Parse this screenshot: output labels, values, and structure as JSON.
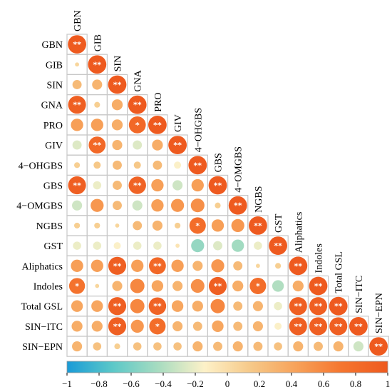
{
  "chart_data": {
    "type": "heatmap",
    "subtype": "correlation-matrix-lower-triangle",
    "title": "",
    "variables": [
      "GBN",
      "GIB",
      "SIN",
      "GNA",
      "PRO",
      "GIV",
      "4−OHGBS",
      "GBS",
      "4−OMGBS",
      "NGBS",
      "GST",
      "Aliphatics",
      "Indoles",
      "Total GSL",
      "SIN−ITC",
      "SIN−EPN"
    ],
    "matrix": [
      [
        1
      ],
      [
        0.05,
        1
      ],
      [
        0.25,
        0.3,
        1
      ],
      [
        0.95,
        0.1,
        0.35,
        1
      ],
      [
        0.45,
        0.45,
        0.35,
        0.85,
        1
      ],
      [
        -0.25,
        0.85,
        0.3,
        -0.25,
        0.35,
        1
      ],
      [
        0.1,
        0.15,
        0.25,
        0.15,
        0.25,
        -0.15,
        1
      ],
      [
        0.95,
        -0.2,
        0.25,
        0.9,
        0.45,
        -0.3,
        0.45,
        1
      ],
      [
        -0.3,
        0.5,
        0.25,
        -0.3,
        0.45,
        0.5,
        0.55,
        0.1,
        1
      ],
      [
        0.1,
        0.1,
        0.05,
        0.25,
        0.3,
        0.1,
        0.8,
        0.45,
        0.5,
        1
      ],
      [
        -0.2,
        -0.2,
        -0.15,
        -0.2,
        -0.2,
        -0.05,
        -0.5,
        -0.25,
        -0.45,
        -0.2,
        1
      ],
      [
        0.45,
        0.45,
        0.95,
        0.45,
        0.85,
        0.45,
        0.3,
        0.5,
        0.25,
        0.05,
        0.1,
        1
      ],
      [
        0.75,
        0.05,
        0.3,
        0.6,
        0.4,
        0.3,
        0.55,
        0.95,
        0.35,
        0.8,
        -0.4,
        0.35,
        1
      ],
      [
        0.4,
        0.4,
        0.95,
        0.6,
        0.9,
        0.4,
        0.35,
        0.6,
        0.25,
        0.3,
        -0.2,
        0.95,
        0.95,
        1
      ],
      [
        0.35,
        0.35,
        0.95,
        0.5,
        0.8,
        0.3,
        0.25,
        0.4,
        0.25,
        0.3,
        -0.15,
        0.95,
        0.95,
        0.95,
        1
      ],
      [
        0.3,
        0.2,
        0.1,
        0.2,
        0.2,
        0.2,
        0.3,
        0.25,
        0.3,
        0.25,
        0.2,
        0.3,
        0.25,
        0.3,
        -0.3,
        1
      ]
    ],
    "significance_stars": [
      [
        "**"
      ],
      [
        "",
        "**"
      ],
      [
        "",
        "",
        "**"
      ],
      [
        "**",
        "",
        "",
        "**"
      ],
      [
        "",
        "",
        "",
        "*",
        "**"
      ],
      [
        "",
        "**",
        "",
        "",
        "",
        "**"
      ],
      [
        "",
        "",
        "",
        "",
        "",
        "",
        "**"
      ],
      [
        "**",
        "",
        "",
        "**",
        "",
        "",
        "",
        "**"
      ],
      [
        "",
        "",
        "",
        "",
        "",
        "",
        "",
        "",
        "**"
      ],
      [
        "",
        "",
        "",
        "",
        "",
        "",
        "*",
        "",
        "",
        "**"
      ],
      [
        "",
        "",
        "",
        "",
        "",
        "",
        "",
        "",
        "",
        "",
        "**"
      ],
      [
        "",
        "",
        "**",
        "",
        "**",
        "",
        "",
        "",
        "",
        "",
        "",
        "**"
      ],
      [
        "*",
        "",
        "",
        "",
        "",
        "",
        "",
        "**",
        "",
        "*",
        "",
        "",
        "**"
      ],
      [
        "",
        "",
        "**",
        "",
        "**",
        "",
        "",
        "",
        "",
        "",
        "",
        "**",
        "**",
        "**"
      ],
      [
        "",
        "",
        "**",
        "",
        "*",
        "",
        "",
        "",
        "",
        "",
        "",
        "**",
        "**",
        "**",
        "**"
      ],
      [
        "",
        "",
        "",
        "",
        "",
        "",
        "",
        "",
        "",
        "",
        "",
        "",
        "",
        "",
        "",
        "**"
      ]
    ],
    "color_scale": {
      "min": -1,
      "max": 1,
      "stops": [
        "#1a9bd7",
        "#5cc8c8",
        "#a8dcc0",
        "#fdf1c8",
        "#f6c989",
        "#f7a25a",
        "#f5752f",
        "#ee5a1f"
      ],
      "ticks": [
        "−1",
        "−0.8",
        "−0.6",
        "−0.4",
        "−0.2",
        "0",
        "0.2",
        "0.4",
        "0.6",
        "0.8",
        "1"
      ]
    },
    "legend_position": "bottom",
    "grid": true
  }
}
